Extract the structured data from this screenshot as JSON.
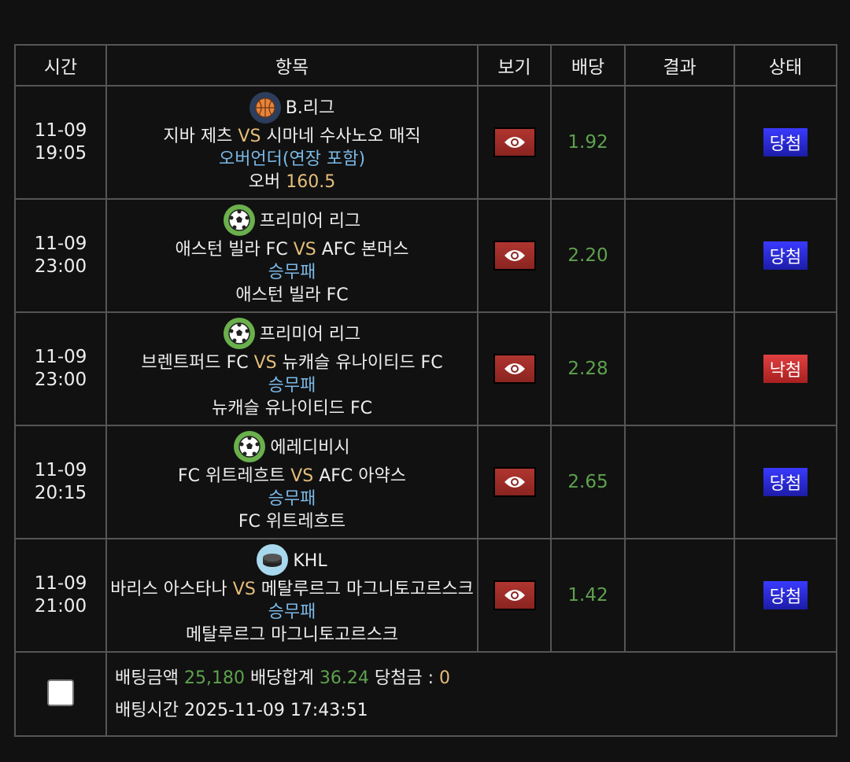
{
  "header": {
    "time": "시간",
    "item": "항목",
    "view": "보기",
    "odds": "배당",
    "result": "결과",
    "status": "상태"
  },
  "colors": {
    "vs": "#e6be7a",
    "market": "#7ab8e6",
    "odds": "#5ea24e",
    "win_badge": "#2a2ae0",
    "lose_badge": "#d03030",
    "view_button": "#a02d28"
  },
  "rows": [
    {
      "date": "11-09",
      "time": "19:05",
      "sport_icon": "basketball-icon",
      "league": "B.리그",
      "home": "지바 제츠",
      "vs": "VS",
      "away": "시마네 수사노오 매직",
      "market": "오버언더(연장 포함)",
      "pick": "오버",
      "pick_value": "160.5",
      "odds": "1.92",
      "result": "",
      "status": "당첨",
      "status_type": "win"
    },
    {
      "date": "11-09",
      "time": "23:00",
      "sport_icon": "soccer-icon",
      "league": "프리미어 리그",
      "home": "애스턴 빌라 FC",
      "vs": "VS",
      "away": "AFC 본머스",
      "market": "승무패",
      "pick": "애스턴 빌라 FC",
      "pick_value": "",
      "odds": "2.20",
      "result": "",
      "status": "당첨",
      "status_type": "win"
    },
    {
      "date": "11-09",
      "time": "23:00",
      "sport_icon": "soccer-icon",
      "league": "프리미어 리그",
      "home": "브렌트퍼드 FC",
      "vs": "VS",
      "away": "뉴캐슬 유나이티드 FC",
      "market": "승무패",
      "pick": "뉴캐슬 유나이티드 FC",
      "pick_value": "",
      "odds": "2.28",
      "result": "",
      "status": "낙첨",
      "status_type": "lose"
    },
    {
      "date": "11-09",
      "time": "20:15",
      "sport_icon": "soccer-icon",
      "league": "에레디비시",
      "home": "FC 위트레흐트",
      "vs": "VS",
      "away": "AFC 아약스",
      "market": "승무패",
      "pick": "FC 위트레흐트",
      "pick_value": "",
      "odds": "2.65",
      "result": "",
      "status": "당첨",
      "status_type": "win"
    },
    {
      "date": "11-09",
      "time": "21:00",
      "sport_icon": "hockey-puck-icon",
      "league": "KHL",
      "home": "바리스 아스타나",
      "vs": "VS",
      "away": "메탈루르그 마그니토고르스크",
      "market": "승무패",
      "pick": "메탈루르그 마그니토고르스크",
      "pick_value": "",
      "odds": "1.42",
      "result": "",
      "status": "당첨",
      "status_type": "win"
    }
  ],
  "summary": {
    "bet_amount_label": "배팅금액",
    "bet_amount": "25,180",
    "odds_total_label": "배당합계",
    "odds_total": "36.24",
    "payout_label": "당첨금 :",
    "payout": "0",
    "bet_time_label": "배팅시간",
    "bet_time": "2025-11-09 17:43:51"
  }
}
